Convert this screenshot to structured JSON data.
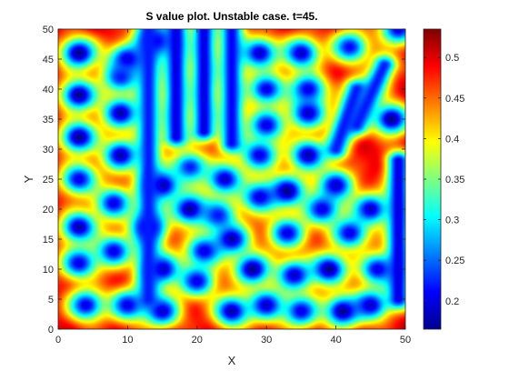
{
  "chart_data": {
    "type": "heatmap",
    "title": "S value plot. Unstable case. t=45.",
    "xlabel": "X",
    "ylabel": "Y",
    "xlim": [
      0,
      50
    ],
    "ylim": [
      0,
      50
    ],
    "x_ticks": [
      0,
      10,
      20,
      30,
      40,
      50
    ],
    "y_ticks": [
      0,
      5,
      10,
      15,
      20,
      25,
      30,
      35,
      40,
      45,
      50
    ],
    "colormap": "jet",
    "colorbar": {
      "min": 0.165,
      "max": 0.535,
      "ticks": [
        0.2,
        0.25,
        0.3,
        0.35,
        0.4,
        0.45,
        0.5
      ],
      "tick_labels": [
        "0.2",
        "0.25",
        "0.3",
        "0.35",
        "0.4",
        "0.45",
        "0.5"
      ]
    },
    "field": {
      "background_value": 0.5,
      "spots": [
        {
          "x": 3,
          "y": 46,
          "value": 0.17
        },
        {
          "x": 10,
          "y": 45,
          "value": 0.19
        },
        {
          "x": 14,
          "y": 48,
          "value": 0.2
        },
        {
          "x": 3,
          "y": 39,
          "value": 0.17
        },
        {
          "x": 9,
          "y": 42,
          "value": 0.22
        },
        {
          "x": 9,
          "y": 36,
          "value": 0.18
        },
        {
          "x": 3,
          "y": 32,
          "value": 0.17
        },
        {
          "x": 9,
          "y": 29,
          "value": 0.18
        },
        {
          "x": 3,
          "y": 25,
          "value": 0.2
        },
        {
          "x": 3,
          "y": 17,
          "value": 0.18
        },
        {
          "x": 8,
          "y": 21,
          "value": 0.2
        },
        {
          "x": 3,
          "y": 11,
          "value": 0.2
        },
        {
          "x": 8,
          "y": 13,
          "value": 0.2
        },
        {
          "x": 4,
          "y": 4,
          "value": 0.2
        },
        {
          "x": 10,
          "y": 4,
          "value": 0.2
        },
        {
          "x": 13,
          "y": 17,
          "value": 0.18
        },
        {
          "x": 15,
          "y": 24,
          "value": 0.17
        },
        {
          "x": 19,
          "y": 27,
          "value": 0.22
        },
        {
          "x": 19,
          "y": 20,
          "value": 0.17
        },
        {
          "x": 15,
          "y": 10,
          "value": 0.18
        },
        {
          "x": 15,
          "y": 3,
          "value": 0.19
        },
        {
          "x": 20,
          "y": 8,
          "value": 0.2
        },
        {
          "x": 21,
          "y": 13,
          "value": 0.2
        },
        {
          "x": 23,
          "y": 19,
          "value": 0.22
        },
        {
          "x": 24,
          "y": 25,
          "value": 0.19
        },
        {
          "x": 25,
          "y": 3,
          "value": 0.18
        },
        {
          "x": 25,
          "y": 15,
          "value": 0.18
        },
        {
          "x": 28,
          "y": 10,
          "value": 0.17
        },
        {
          "x": 29,
          "y": 22,
          "value": 0.2
        },
        {
          "x": 29,
          "y": 29,
          "value": 0.2
        },
        {
          "x": 29,
          "y": 46,
          "value": 0.19
        },
        {
          "x": 30,
          "y": 40,
          "value": 0.2
        },
        {
          "x": 30,
          "y": 34,
          "value": 0.2
        },
        {
          "x": 30,
          "y": 4,
          "value": 0.19
        },
        {
          "x": 33,
          "y": 16,
          "value": 0.2
        },
        {
          "x": 33,
          "y": 23,
          "value": 0.17
        },
        {
          "x": 34,
          "y": 9,
          "value": 0.19
        },
        {
          "x": 35,
          "y": 3,
          "value": 0.2
        },
        {
          "x": 36,
          "y": 29,
          "value": 0.18
        },
        {
          "x": 36,
          "y": 36,
          "value": 0.19
        },
        {
          "x": 36,
          "y": 40,
          "value": 0.2
        },
        {
          "x": 35,
          "y": 46,
          "value": 0.19
        },
        {
          "x": 38,
          "y": 20,
          "value": 0.2
        },
        {
          "x": 39,
          "y": 10,
          "value": 0.17
        },
        {
          "x": 40,
          "y": 24,
          "value": 0.19
        },
        {
          "x": 41,
          "y": 3,
          "value": 0.17
        },
        {
          "x": 42,
          "y": 16,
          "value": 0.2
        },
        {
          "x": 42,
          "y": 47,
          "value": 0.21
        },
        {
          "x": 45,
          "y": 20,
          "value": 0.19
        },
        {
          "x": 46,
          "y": 10,
          "value": 0.2
        },
        {
          "x": 45,
          "y": 4,
          "value": 0.19
        },
        {
          "x": 48,
          "y": 35,
          "value": 0.17
        },
        {
          "x": 49,
          "y": 50,
          "value": 0.2
        }
      ],
      "stripes": [
        {
          "from": [
            13,
            5
          ],
          "to": [
            13,
            50
          ],
          "value": 0.22
        },
        {
          "from": [
            17,
            32
          ],
          "to": [
            17,
            50
          ],
          "value": 0.2
        },
        {
          "from": [
            21,
            33
          ],
          "to": [
            21,
            50
          ],
          "value": 0.2
        },
        {
          "from": [
            25,
            31
          ],
          "to": [
            25,
            50
          ],
          "value": 0.21
        },
        {
          "from": [
            43,
            34
          ],
          "to": [
            47,
            44
          ],
          "value": 0.22
        },
        {
          "from": [
            40,
            30
          ],
          "to": [
            43,
            40
          ],
          "value": 0.22
        },
        {
          "from": [
            49,
            5
          ],
          "to": [
            49,
            28
          ],
          "value": 0.2
        }
      ]
    }
  }
}
